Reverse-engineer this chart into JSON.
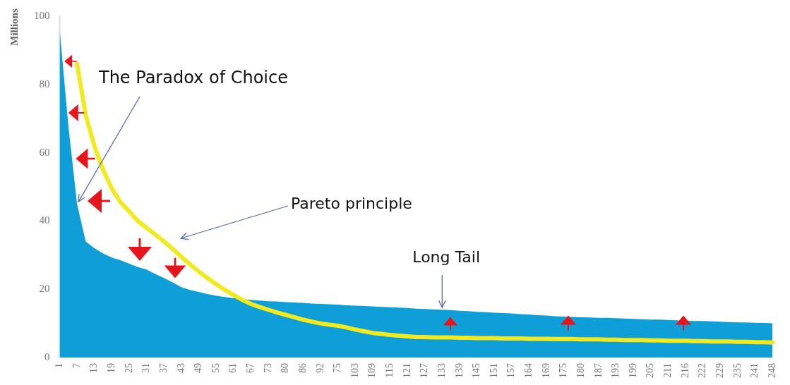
{
  "chart_data": {
    "type": "area",
    "ylabel": "Millions",
    "categories": [
      "1",
      null,
      "7",
      null,
      "13",
      null,
      "19",
      null,
      "25",
      null,
      "31",
      null,
      "37",
      null,
      "43",
      null,
      "49",
      null,
      "55",
      null,
      "61",
      null,
      "67",
      null,
      "73",
      null,
      "80",
      null,
      "86",
      null,
      "92",
      null,
      "75",
      null,
      "103",
      null,
      "109",
      null,
      "115",
      null,
      "121",
      null,
      "127",
      null,
      "133",
      null,
      "139",
      null,
      "145",
      null,
      "151",
      null,
      "157",
      null,
      "164",
      null,
      "169",
      null,
      "175",
      null,
      "180",
      null,
      "187",
      null,
      "193",
      null,
      "199",
      null,
      "205",
      null,
      "211",
      null,
      "216",
      null,
      "222",
      null,
      "229",
      null,
      "235",
      null,
      "241",
      null,
      "248"
    ],
    "series": [
      {
        "color": "#0e9fd8",
        "values": [
          96,
          68,
          45,
          34,
          32,
          30.5,
          29.3,
          28.5,
          27.5,
          26.5,
          25.8,
          24.5,
          23.3,
          22,
          20.6,
          19.8,
          19.2,
          18.6,
          18.1,
          17.7,
          17.4,
          17.1,
          16.9,
          16.7,
          16.5,
          16.4,
          16.2,
          16.1,
          16,
          15.8,
          15.7,
          15.6,
          15.5,
          15.3,
          15.2,
          15.1,
          15,
          14.8,
          14.7,
          14.6,
          14.5,
          14.3,
          14.2,
          14.1,
          14,
          13.9,
          13.7,
          13.6,
          13.4,
          13.3,
          13.1,
          13,
          12.9,
          12.7,
          12.6,
          12.4,
          12.3,
          12.1,
          12,
          11.9,
          11.8,
          11.7,
          11.6,
          11.6,
          11.5,
          11.4,
          11.3,
          11.2,
          11.1,
          11.1,
          11,
          10.9,
          10.8,
          10.7,
          10.7,
          10.6,
          10.5,
          10.4,
          10.3,
          10.3,
          10.2,
          10.1,
          10
        ]
      },
      {
        "type": "line",
        "color": "#f2ea1c",
        "values": [
          null,
          null,
          86,
          71,
          62,
          55,
          49.5,
          45.5,
          42.8,
          40,
          38,
          36,
          34,
          31.8,
          29.5,
          27.3,
          25.2,
          23.3,
          21.5,
          19.8,
          18.3,
          16.9,
          15.7,
          14.8,
          14,
          13.2,
          12.5,
          11.8,
          11.1,
          10.5,
          10,
          9.6,
          9.3,
          8.8,
          8.2,
          7.7,
          7.2,
          6.9,
          6.6,
          6.4,
          6.2,
          6,
          6,
          5.9,
          5.9,
          5.9,
          5.8,
          5.8,
          5.7,
          5.7,
          5.7,
          5.6,
          5.6,
          5.6,
          5.5,
          5.5,
          5.5,
          5.4,
          5.4,
          5.4,
          5.3,
          5.3,
          5.3,
          5.2,
          5.2,
          5.1,
          5.1,
          5.1,
          5,
          5,
          4.9,
          4.9,
          4.9,
          4.8,
          4.8,
          4.7,
          4.7,
          4.7,
          4.6,
          4.6,
          4.5,
          4.5,
          4.4
        ]
      }
    ],
    "ylim": [
      0,
      100
    ],
    "yticks": [
      0,
      20,
      40,
      60,
      80,
      100
    ],
    "grid": false,
    "legend": false,
    "annotations": [
      {
        "text": "The Paradox of Choice",
        "x": "7",
        "y": 45
      },
      "Pareto principle",
      {
        "text": "Long Tail",
        "x": "133",
        "y": 14
      }
    ]
  }
}
